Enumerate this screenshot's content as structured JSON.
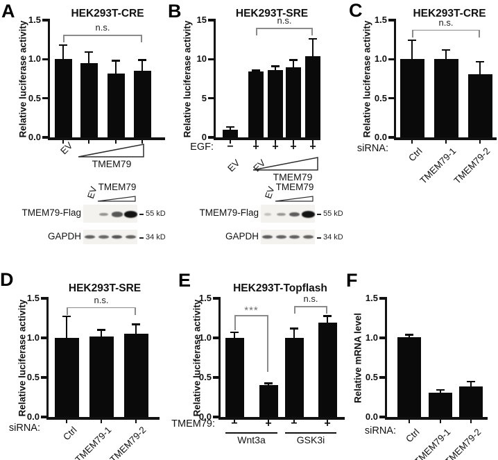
{
  "figure": {
    "background": "#ffffff",
    "bar_color": "#0a0a0a",
    "axis_color": "#111111",
    "bracket_color": "#8a8a8a",
    "sig_star_color": "#6f6f6f",
    "blot_bg": "#f3f2ef",
    "band_color": "#141414"
  },
  "panels": [
    {
      "letter": "A"
    },
    {
      "letter": "B"
    },
    {
      "letter": "C"
    },
    {
      "letter": "D"
    },
    {
      "letter": "E"
    },
    {
      "letter": "F"
    }
  ],
  "chart_data": [
    {
      "id": "A",
      "type": "bar",
      "title": "HEK293T-CRE",
      "ylabel": "Relative luciferase activity",
      "ylim": [
        0,
        1.5
      ],
      "yticks": [
        {
          "v": 0,
          "label": "0.0"
        },
        {
          "v": 0.5,
          "label": "0.5"
        },
        {
          "v": 1.0,
          "label": "1.0"
        },
        {
          "v": 1.5,
          "label": "1.5"
        }
      ],
      "values": [
        1.0,
        0.95,
        0.82,
        0.85
      ],
      "errors": [
        0.18,
        0.14,
        0.16,
        0.14
      ],
      "bar_tick_labels": [
        "EV",
        "",
        "",
        ""
      ],
      "wedge_label": "TMEM79",
      "brackets": [
        {
          "label": "n.s.",
          "from": 0,
          "to": 3,
          "y": 1.31
        }
      ]
    },
    {
      "id": "B",
      "type": "bar",
      "title": "HEK293T-SRE",
      "ylabel": "Relative luciferase activity",
      "ylim": [
        0,
        15
      ],
      "yticks": [
        {
          "v": 0,
          "label": "0"
        },
        {
          "v": 5,
          "label": "5"
        },
        {
          "v": 10,
          "label": "10"
        },
        {
          "v": 15,
          "label": "15"
        }
      ],
      "values": [
        1.0,
        8.4,
        8.65,
        8.95,
        10.4
      ],
      "errors": [
        0.35,
        0.18,
        0.45,
        0.95,
        2.2
      ],
      "cond_row": {
        "label": "EGF:",
        "values": [
          "−",
          "+",
          "+",
          "+",
          "+"
        ]
      },
      "bar_tick_labels": [
        "EV",
        "EV",
        "",
        "",
        ""
      ],
      "wedge_label": "TMEM79",
      "brackets": [
        {
          "label": "n.s.",
          "from": 1,
          "to": 4,
          "y": 14.0
        }
      ]
    },
    {
      "id": "C",
      "type": "bar",
      "title": "HEK293T-CRE",
      "ylabel": "Relative luciferase activity",
      "ylim": [
        0,
        1.5
      ],
      "yticks": [
        {
          "v": 0,
          "label": "0.0"
        },
        {
          "v": 0.5,
          "label": "0.5"
        },
        {
          "v": 1.0,
          "label": "1.0"
        },
        {
          "v": 1.5,
          "label": "1.5"
        }
      ],
      "values": [
        1.0,
        1.0,
        0.81
      ],
      "errors": [
        0.24,
        0.12,
        0.16
      ],
      "x_row_label": "siRNA:",
      "rot_labels": [
        "Ctrl",
        "TMEM79-1",
        "TMEM79-2"
      ],
      "brackets": [
        {
          "label": "n.s.",
          "from": 0,
          "to": 2,
          "y": 1.38
        }
      ]
    },
    {
      "id": "D",
      "type": "bar",
      "title": "HEK293T-SRE",
      "ylabel": "Relative luciferase activity",
      "ylim": [
        0,
        1.5
      ],
      "yticks": [
        {
          "v": 0,
          "label": "0.0"
        },
        {
          "v": 0.5,
          "label": "0.5"
        },
        {
          "v": 1.0,
          "label": "1.0"
        },
        {
          "v": 1.5,
          "label": "1.5"
        }
      ],
      "values": [
        1.0,
        1.02,
        1.05
      ],
      "errors": [
        0.27,
        0.08,
        0.12
      ],
      "x_row_label": "siRNA:",
      "rot_labels": [
        "Ctrl",
        "TMEM79-1",
        "TMEM79-2"
      ],
      "brackets": [
        {
          "label": "n.s.",
          "from": 0,
          "to": 2,
          "y": 1.39
        }
      ]
    },
    {
      "id": "E",
      "type": "bar",
      "title": "HEK293T-Topflash",
      "ylabel": "Relative luciferase activity",
      "ylim": [
        0,
        1.5
      ],
      "yticks": [
        {
          "v": 0,
          "label": "0.0"
        },
        {
          "v": 0.5,
          "label": "0.5"
        },
        {
          "v": 1.0,
          "label": "1.0"
        },
        {
          "v": 1.5,
          "label": "1.5"
        }
      ],
      "values": [
        1.0,
        0.4,
        1.0,
        1.19
      ],
      "errors": [
        0.07,
        0.025,
        0.12,
        0.085
      ],
      "cond_row": {
        "label": "TMEM79:",
        "values": [
          "−",
          "+",
          "−",
          "+"
        ]
      },
      "groups": [
        {
          "label": "Wnt3a",
          "from": 0,
          "to": 1
        },
        {
          "label": "GSK3i",
          "from": 2,
          "to": 3
        }
      ],
      "brackets": [
        {
          "label": "***",
          "from": 0,
          "to": 1,
          "y": 1.29,
          "left_to": 1.1,
          "right_to": 0.57
        },
        {
          "label": "n.s.",
          "from": 2,
          "to": 3,
          "y": 1.4
        }
      ]
    },
    {
      "id": "F",
      "type": "bar",
      "title": "",
      "ylabel": "Relative mRNA level",
      "ylim": [
        0,
        1.5
      ],
      "yticks": [
        {
          "v": 0,
          "label": "0.0"
        },
        {
          "v": 0.5,
          "label": "0.5"
        },
        {
          "v": 1.0,
          "label": "1.0"
        },
        {
          "v": 1.5,
          "label": "1.5"
        }
      ],
      "values": [
        1.01,
        0.31,
        0.39
      ],
      "errors": [
        0.03,
        0.03,
        0.055
      ],
      "x_row_label": "siRNA:",
      "rot_labels": [
        "Ctrl",
        "TMEM79-1",
        "TMEM79-2"
      ]
    }
  ],
  "blots": [
    {
      "panel": "A",
      "header": {
        "first_lane": "EV",
        "wedge_label": "TMEM79"
      },
      "rows": [
        {
          "label": "TMEM79-Flag",
          "marker": "55 kD",
          "bands": [
            0,
            0.3,
            0.62,
            1
          ]
        },
        {
          "label": "GAPDH",
          "marker": "34 kD",
          "bands": [
            0.6,
            0.55,
            0.72,
            0.6
          ]
        }
      ]
    },
    {
      "panel": "B",
      "header": {
        "first_lane": "EV",
        "wedge_label": "TMEM79"
      },
      "rows": [
        {
          "label": "TMEM79-Flag",
          "marker": "55 kD",
          "bands": [
            0.05,
            0.28,
            0.6,
            1
          ]
        },
        {
          "label": "GAPDH",
          "marker": "34 kD",
          "bands": [
            0.65,
            0.6,
            0.62,
            0.6
          ]
        }
      ]
    }
  ]
}
